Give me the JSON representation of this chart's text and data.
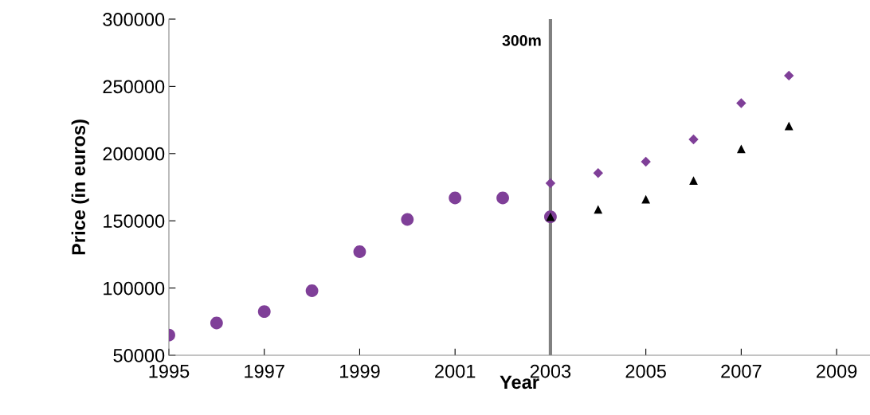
{
  "chart_data": {
    "type": "scatter",
    "xlabel": "Year",
    "ylabel": "Price (in euros)",
    "series": [
      {
        "color": "#7f3f98",
        "marker": "circle",
        "x": [
          1995,
          1996,
          1997,
          1998,
          1999,
          2000,
          2001,
          2002,
          2003
        ],
        "values": [
          65000,
          74000,
          82500,
          98000,
          127000,
          151000,
          167000,
          167000,
          153000
        ]
      },
      {
        "color": "#7f3f98",
        "marker": "diamond",
        "x": [
          2003,
          2004,
          2005,
          2006,
          2007,
          2008
        ],
        "values": [
          178000,
          185500,
          194000,
          210500,
          237500,
          258000
        ]
      },
      {
        "color": "#000000",
        "marker": "triangle",
        "x": [
          2003,
          2004,
          2005,
          2006,
          2007,
          2008
        ],
        "values": [
          153000,
          158500,
          166000,
          180000,
          203500,
          220500
        ]
      }
    ],
    "xlim": [
      1995,
      2009.7
    ],
    "xticks": [
      1995,
      1997,
      1999,
      2001,
      2003,
      2005,
      2007,
      2009
    ],
    "ylim": [
      50000,
      300000
    ],
    "yticks": [
      50000,
      100000,
      150000,
      200000,
      250000,
      300000
    ],
    "ref_lines": [
      {
        "axis": "x",
        "value": 2003,
        "label": "300m",
        "color": "#808080"
      }
    ],
    "grid": false,
    "legend": false
  }
}
